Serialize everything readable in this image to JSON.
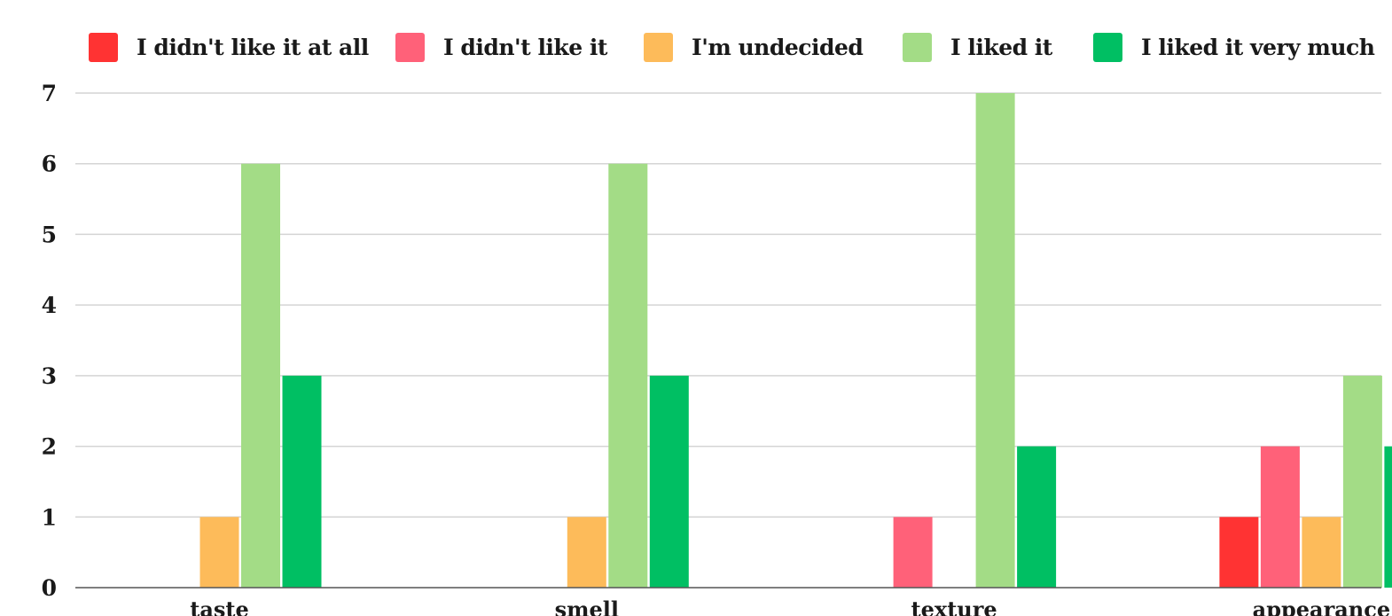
{
  "chart_data": {
    "type": "bar",
    "title": "",
    "xlabel": "",
    "ylabel": "",
    "categories": [
      "taste",
      "smell",
      "texture",
      "appearance"
    ],
    "series": [
      {
        "name": "I didn't like it at all",
        "color": "#ff3333",
        "values": [
          0,
          0,
          0,
          1
        ]
      },
      {
        "name": "I didn't like it",
        "color": "#ff6179",
        "values": [
          0,
          0,
          1,
          2
        ]
      },
      {
        "name": "I'm undecided",
        "color": "#fdbb5a",
        "values": [
          1,
          1,
          0,
          1
        ]
      },
      {
        "name": "I liked it",
        "color": "#a3dc86",
        "values": [
          6,
          6,
          7,
          3
        ]
      },
      {
        "name": "I liked it very much",
        "color": "#00bf63",
        "values": [
          3,
          3,
          2,
          2
        ]
      }
    ],
    "ylim": [
      0,
      7
    ],
    "yticks": [
      0,
      1,
      2,
      3,
      4,
      5,
      6,
      7
    ],
    "grid": true,
    "legend_position": "top"
  }
}
